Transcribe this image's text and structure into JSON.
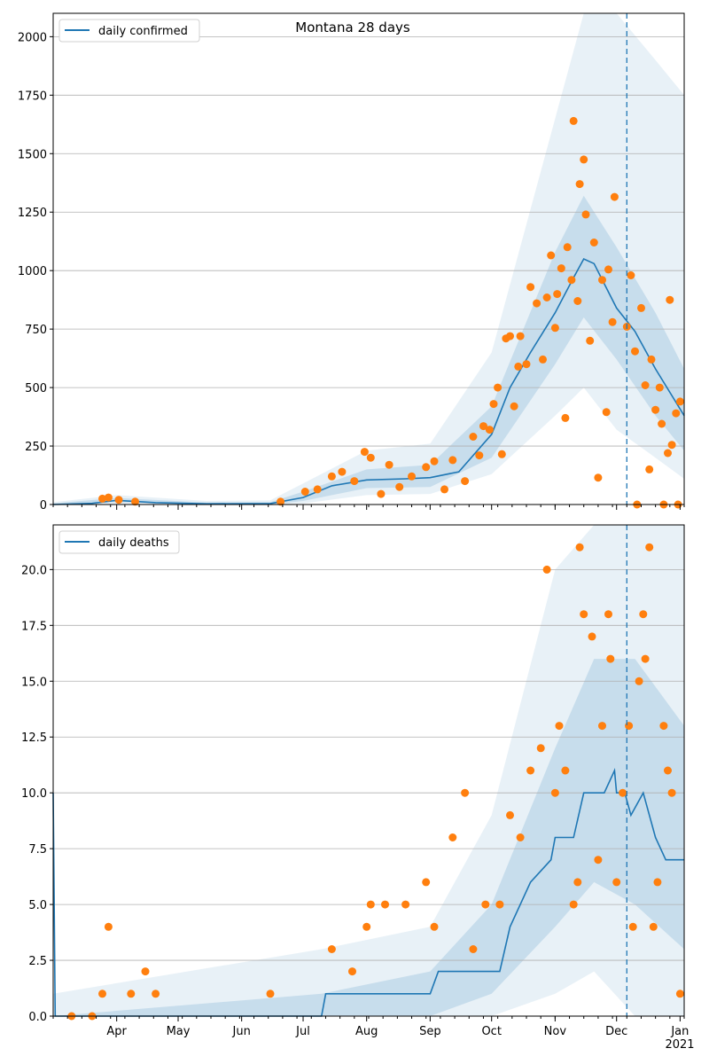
{
  "figure": {
    "title": "Montana 28 days",
    "colors": {
      "line": "#1f77b4",
      "points": "#ff7f0e",
      "band": "#1f77b4",
      "grid": "#b0b0b0",
      "axes": "#000000"
    }
  },
  "x_axis": {
    "ticks": [
      {
        "label": "Apr",
        "date": "2020-04-01"
      },
      {
        "label": "May",
        "date": "2020-05-01"
      },
      {
        "label": "Jun",
        "date": "2020-06-01"
      },
      {
        "label": "Jul",
        "date": "2020-07-01"
      },
      {
        "label": "Aug",
        "date": "2020-08-01"
      },
      {
        "label": "Sep",
        "date": "2020-09-01"
      },
      {
        "label": "Oct",
        "date": "2020-10-01"
      },
      {
        "label": "Nov",
        "date": "2020-11-01"
      },
      {
        "label": "Dec",
        "date": "2020-12-01"
      },
      {
        "label": "Jan",
        "date": "2021-01-01"
      }
    ],
    "year_label": "2021",
    "range": [
      "2020-03-01",
      "2021-01-03"
    ]
  },
  "chart_data": [
    {
      "type": "line",
      "legend": "daily confirmed",
      "legend_position": "top-left",
      "grid": "horizontal",
      "ylim": [
        0,
        2100
      ],
      "yticks": [
        "0",
        "250",
        "500",
        "750",
        "1000",
        "1250",
        "1500",
        "1750",
        "2000"
      ],
      "vline_date": "2020-12-06",
      "line": [
        [
          "2020-03-01",
          0
        ],
        [
          "2020-03-20",
          5
        ],
        [
          "2020-04-01",
          18
        ],
        [
          "2020-04-20",
          8
        ],
        [
          "2020-05-15",
          3
        ],
        [
          "2020-06-15",
          4
        ],
        [
          "2020-07-01",
          30
        ],
        [
          "2020-07-15",
          80
        ],
        [
          "2020-08-01",
          105
        ],
        [
          "2020-08-20",
          110
        ],
        [
          "2020-09-01",
          115
        ],
        [
          "2020-09-15",
          140
        ],
        [
          "2020-10-01",
          300
        ],
        [
          "2020-10-10",
          500
        ],
        [
          "2020-10-20",
          650
        ],
        [
          "2020-11-01",
          820
        ],
        [
          "2020-11-10",
          970
        ],
        [
          "2020-11-15",
          1050
        ],
        [
          "2020-11-20",
          1030
        ],
        [
          "2020-12-01",
          840
        ],
        [
          "2020-12-10",
          740
        ],
        [
          "2020-12-20",
          580
        ],
        [
          "2021-01-03",
          380
        ]
      ],
      "band_inner": [
        [
          "2020-03-01",
          0,
          5
        ],
        [
          "2020-04-01",
          10,
          28
        ],
        [
          "2020-05-15",
          0,
          8
        ],
        [
          "2020-06-15",
          0,
          10
        ],
        [
          "2020-07-01",
          15,
          55
        ],
        [
          "2020-08-01",
          70,
          150
        ],
        [
          "2020-09-01",
          75,
          170
        ],
        [
          "2020-10-01",
          200,
          420
        ],
        [
          "2020-11-01",
          600,
          1080
        ],
        [
          "2020-11-15",
          800,
          1320
        ],
        [
          "2020-12-01",
          620,
          1100
        ],
        [
          "2020-12-20",
          380,
          820
        ],
        [
          "2021-01-03",
          230,
          580
        ]
      ],
      "band_outer": [
        [
          "2020-03-01",
          0,
          10
        ],
        [
          "2020-04-01",
          3,
          40
        ],
        [
          "2020-05-15",
          0,
          15
        ],
        [
          "2020-06-15",
          0,
          18
        ],
        [
          "2020-07-01",
          5,
          90
        ],
        [
          "2020-08-01",
          40,
          230
        ],
        [
          "2020-09-01",
          45,
          260
        ],
        [
          "2020-10-01",
          130,
          650
        ],
        [
          "2020-11-01",
          380,
          1650
        ],
        [
          "2020-11-15",
          500,
          2100
        ],
        [
          "2020-12-01",
          320,
          2100
        ],
        [
          "2020-12-20",
          200,
          1900
        ],
        [
          "2021-01-03",
          110,
          1750
        ]
      ],
      "points": [
        [
          "2020-03-25",
          25
        ],
        [
          "2020-03-28",
          30
        ],
        [
          "2020-04-02",
          20
        ],
        [
          "2020-04-10",
          12
        ],
        [
          "2020-06-20",
          12
        ],
        [
          "2020-07-02",
          55
        ],
        [
          "2020-07-08",
          65
        ],
        [
          "2020-07-15",
          120
        ],
        [
          "2020-07-20",
          140
        ],
        [
          "2020-07-26",
          100
        ],
        [
          "2020-07-31",
          225
        ],
        [
          "2020-08-03",
          200
        ],
        [
          "2020-08-08",
          45
        ],
        [
          "2020-08-12",
          170
        ],
        [
          "2020-08-17",
          75
        ],
        [
          "2020-08-23",
          120
        ],
        [
          "2020-08-30",
          160
        ],
        [
          "2020-09-03",
          185
        ],
        [
          "2020-09-08",
          65
        ],
        [
          "2020-09-12",
          190
        ],
        [
          "2020-09-18",
          100
        ],
        [
          "2020-09-22",
          290
        ],
        [
          "2020-09-25",
          210
        ],
        [
          "2020-09-27",
          335
        ],
        [
          "2020-09-30",
          320
        ],
        [
          "2020-10-02",
          430
        ],
        [
          "2020-10-04",
          500
        ],
        [
          "2020-10-06",
          215
        ],
        [
          "2020-10-08",
          710
        ],
        [
          "2020-10-10",
          720
        ],
        [
          "2020-10-12",
          420
        ],
        [
          "2020-10-14",
          590
        ],
        [
          "2020-10-15",
          720
        ],
        [
          "2020-10-18",
          600
        ],
        [
          "2020-10-20",
          930
        ],
        [
          "2020-10-23",
          860
        ],
        [
          "2020-10-26",
          620
        ],
        [
          "2020-10-28",
          885
        ],
        [
          "2020-10-30",
          1065
        ],
        [
          "2020-11-01",
          755
        ],
        [
          "2020-11-02",
          900
        ],
        [
          "2020-11-04",
          1010
        ],
        [
          "2020-11-06",
          370
        ],
        [
          "2020-11-07",
          1100
        ],
        [
          "2020-11-09",
          960
        ],
        [
          "2020-11-10",
          1640
        ],
        [
          "2020-11-12",
          870
        ],
        [
          "2020-11-13",
          1370
        ],
        [
          "2020-11-15",
          1475
        ],
        [
          "2020-11-16",
          1240
        ],
        [
          "2020-11-18",
          700
        ],
        [
          "2020-11-20",
          1120
        ],
        [
          "2020-11-22",
          115
        ],
        [
          "2020-11-24",
          960
        ],
        [
          "2020-11-27",
          1005
        ],
        [
          "2020-11-26",
          395
        ],
        [
          "2020-11-29",
          780
        ],
        [
          "2020-11-30",
          1315
        ],
        [
          "2020-12-06",
          760
        ],
        [
          "2020-12-08",
          980
        ],
        [
          "2020-12-10",
          655
        ],
        [
          "2020-12-11",
          0
        ],
        [
          "2020-12-13",
          840
        ],
        [
          "2020-12-15",
          510
        ],
        [
          "2020-12-17",
          150
        ],
        [
          "2020-12-18",
          620
        ],
        [
          "2020-12-20",
          405
        ],
        [
          "2020-12-22",
          500
        ],
        [
          "2020-12-23",
          345
        ],
        [
          "2020-12-24",
          0
        ],
        [
          "2020-12-26",
          220
        ],
        [
          "2020-12-27",
          875
        ],
        [
          "2020-12-28",
          255
        ],
        [
          "2020-12-30",
          390
        ],
        [
          "2021-01-01",
          440
        ],
        [
          "2020-12-31",
          0
        ]
      ]
    },
    {
      "type": "line",
      "legend": "daily deaths",
      "legend_position": "top-left",
      "grid": "horizontal",
      "ylim": [
        0,
        22
      ],
      "yticks": [
        "0.0",
        "2.5",
        "5.0",
        "7.5",
        "10.0",
        "12.5",
        "15.0",
        "17.5",
        "20.0"
      ],
      "vline_date": "2020-12-06",
      "line": [
        [
          "2020-03-01",
          10
        ],
        [
          "2020-03-02",
          0
        ],
        [
          "2020-07-10",
          0
        ],
        [
          "2020-07-12",
          1
        ],
        [
          "2020-09-01",
          1
        ],
        [
          "2020-09-05",
          2
        ],
        [
          "2020-10-05",
          2
        ],
        [
          "2020-10-10",
          4
        ],
        [
          "2020-10-20",
          6
        ],
        [
          "2020-10-30",
          7
        ],
        [
          "2020-11-01",
          8
        ],
        [
          "2020-11-10",
          8
        ],
        [
          "2020-11-15",
          10
        ],
        [
          "2020-11-25",
          10
        ],
        [
          "2020-11-30",
          11
        ],
        [
          "2020-12-01",
          10
        ],
        [
          "2020-12-05",
          10
        ],
        [
          "2020-12-08",
          9
        ],
        [
          "2020-12-14",
          10
        ],
        [
          "2020-12-20",
          8
        ],
        [
          "2020-12-25",
          7
        ],
        [
          "2021-01-03",
          7
        ]
      ],
      "band_inner": [
        [
          "2020-03-01",
          0,
          0
        ],
        [
          "2020-07-10",
          0,
          1
        ],
        [
          "2020-09-01",
          0,
          2
        ],
        [
          "2020-10-01",
          1,
          5
        ],
        [
          "2020-11-01",
          4,
          12
        ],
        [
          "2020-11-20",
          6,
          16
        ],
        [
          "2020-12-10",
          5,
          16
        ],
        [
          "2021-01-03",
          3,
          13
        ]
      ],
      "band_outer": [
        [
          "2020-03-01",
          0,
          1
        ],
        [
          "2020-07-10",
          0,
          3
        ],
        [
          "2020-09-01",
          0,
          4
        ],
        [
          "2020-10-01",
          0,
          9
        ],
        [
          "2020-11-01",
          1,
          20
        ],
        [
          "2020-11-20",
          2,
          22
        ],
        [
          "2020-12-10",
          0,
          22
        ],
        [
          "2021-01-03",
          0,
          22
        ]
      ],
      "points": [
        [
          "2020-03-10",
          0
        ],
        [
          "2020-03-20",
          0
        ],
        [
          "2020-03-25",
          1
        ],
        [
          "2020-03-28",
          4
        ],
        [
          "2020-04-08",
          1
        ],
        [
          "2020-04-15",
          2
        ],
        [
          "2020-04-20",
          1
        ],
        [
          "2020-06-15",
          1
        ],
        [
          "2020-07-15",
          3
        ],
        [
          "2020-07-25",
          2
        ],
        [
          "2020-08-01",
          4
        ],
        [
          "2020-08-03",
          5
        ],
        [
          "2020-08-10",
          5
        ],
        [
          "2020-08-20",
          5
        ],
        [
          "2020-08-30",
          6
        ],
        [
          "2020-09-03",
          4
        ],
        [
          "2020-09-12",
          8
        ],
        [
          "2020-09-18",
          10
        ],
        [
          "2020-09-22",
          3
        ],
        [
          "2020-09-28",
          5
        ],
        [
          "2020-10-05",
          5
        ],
        [
          "2020-10-10",
          9
        ],
        [
          "2020-10-15",
          8
        ],
        [
          "2020-10-20",
          11
        ],
        [
          "2020-10-25",
          12
        ],
        [
          "2020-10-28",
          20
        ],
        [
          "2020-11-01",
          10
        ],
        [
          "2020-11-03",
          13
        ],
        [
          "2020-11-06",
          11
        ],
        [
          "2020-11-10",
          5
        ],
        [
          "2020-11-12",
          6
        ],
        [
          "2020-11-13",
          21
        ],
        [
          "2020-11-15",
          18
        ],
        [
          "2020-11-19",
          17
        ],
        [
          "2020-11-22",
          7
        ],
        [
          "2020-11-24",
          13
        ],
        [
          "2020-11-27",
          18
        ],
        [
          "2020-11-28",
          16
        ],
        [
          "2020-12-01",
          6
        ],
        [
          "2020-12-04",
          10
        ],
        [
          "2020-12-07",
          13
        ],
        [
          "2020-12-09",
          4
        ],
        [
          "2020-12-12",
          15
        ],
        [
          "2020-12-14",
          18
        ],
        [
          "2020-12-15",
          16
        ],
        [
          "2020-12-17",
          21
        ],
        [
          "2020-12-19",
          4
        ],
        [
          "2020-12-21",
          6
        ],
        [
          "2020-12-24",
          13
        ],
        [
          "2020-12-26",
          11
        ],
        [
          "2020-12-28",
          10
        ],
        [
          "2021-01-01",
          1
        ]
      ]
    }
  ]
}
